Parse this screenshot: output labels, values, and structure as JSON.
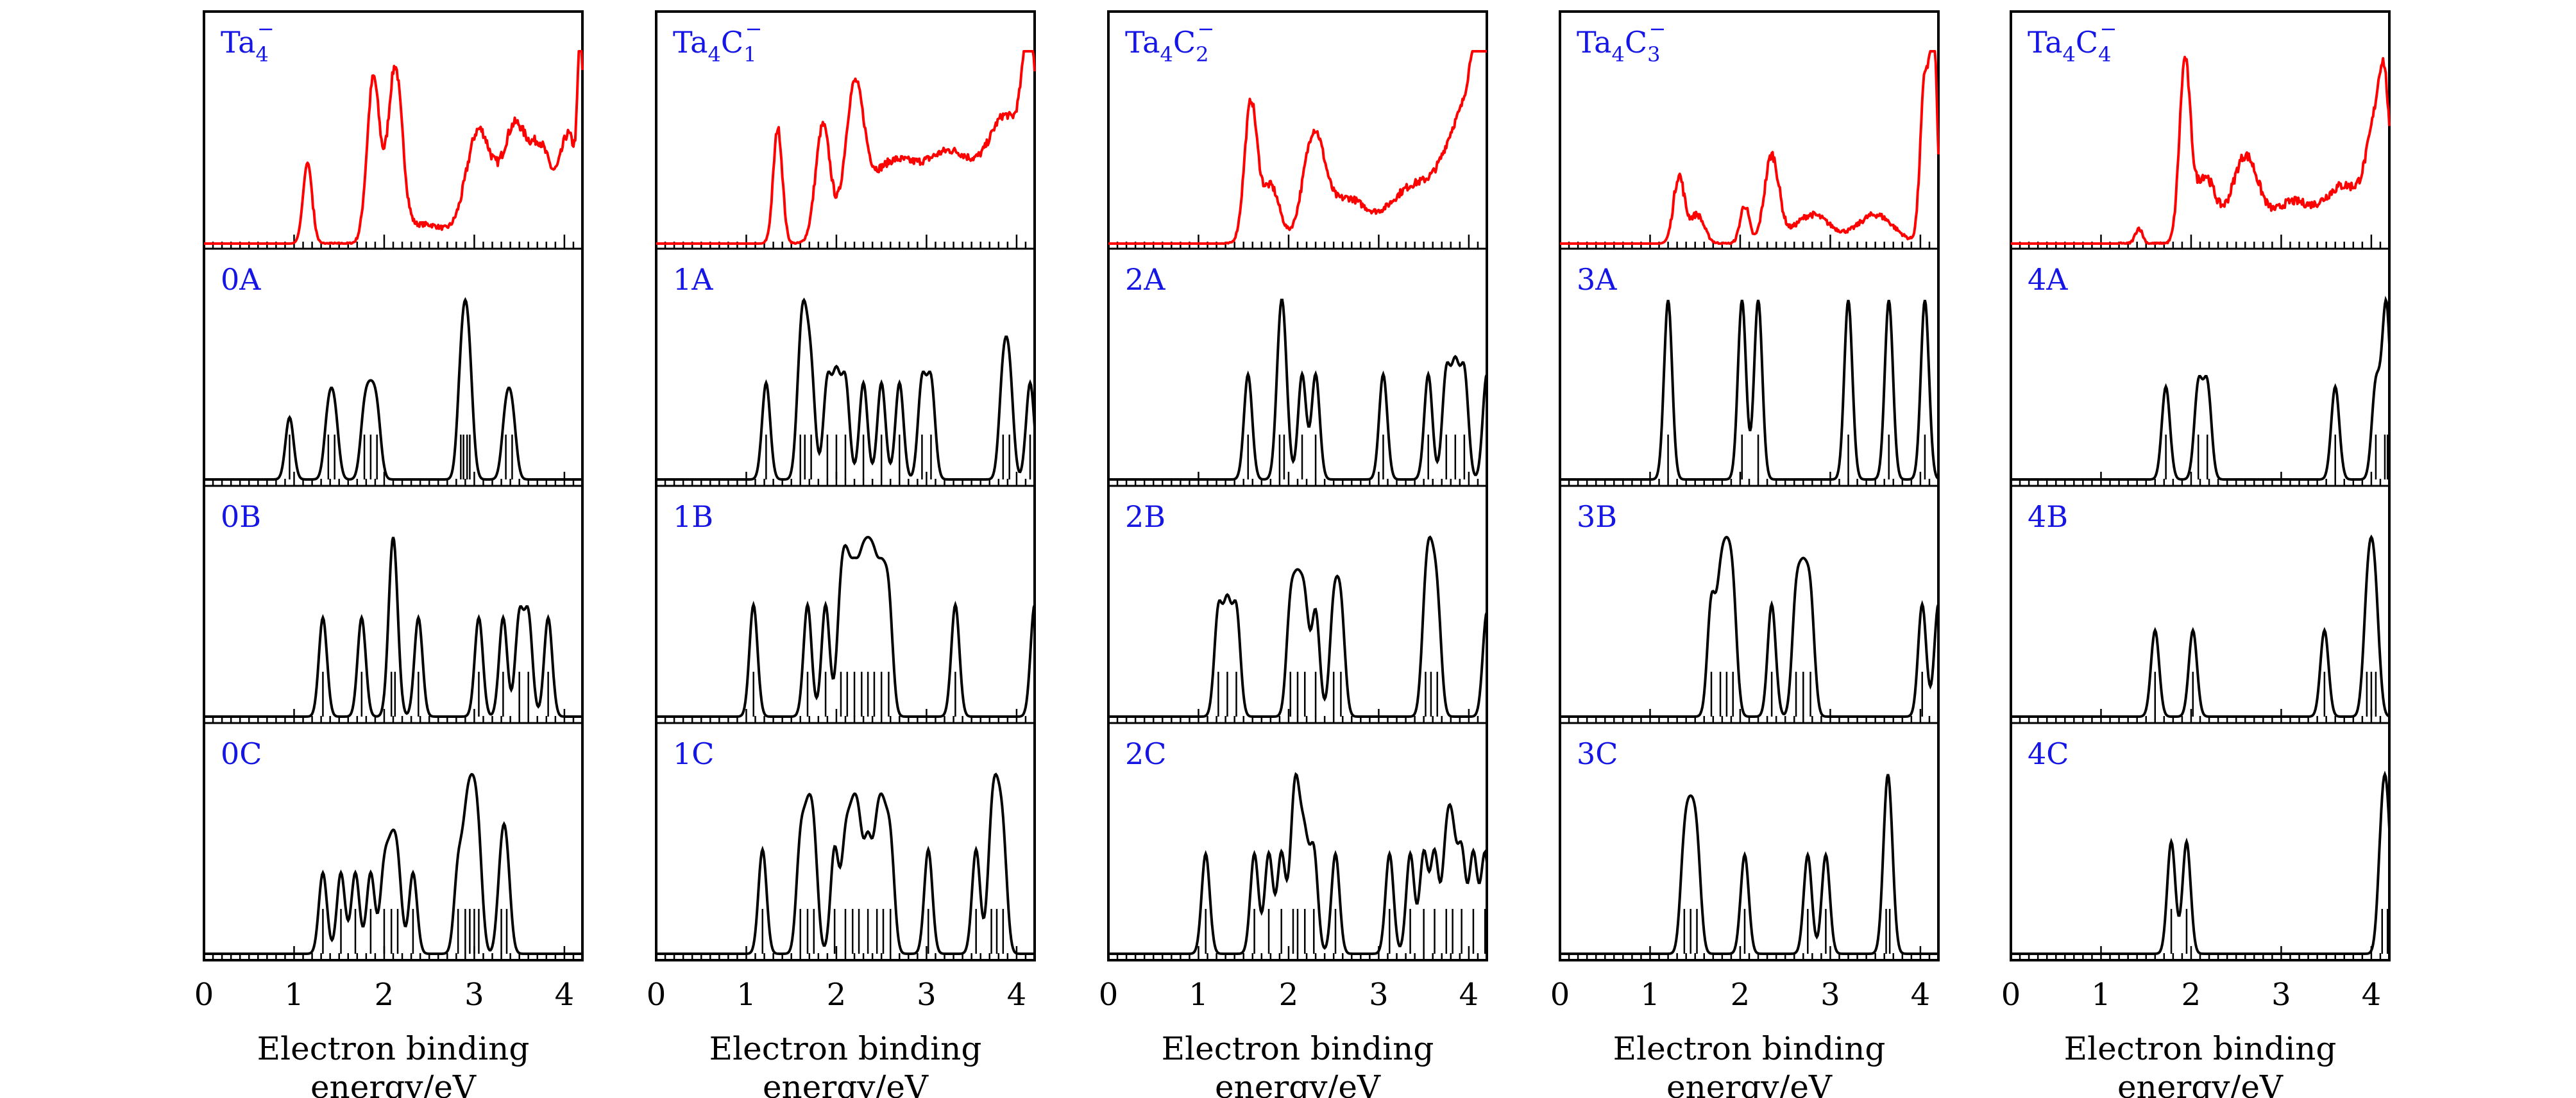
{
  "figure": {
    "xlabel_line1": "Electron binding",
    "xlabel_line2": "energy/eV",
    "colors": {
      "experiment": "#ff0000",
      "simulation": "#000000",
      "label": "#1515e6",
      "frame": "#000000"
    }
  },
  "chart_data": [
    {
      "type": "line",
      "cluster": "Ta4-",
      "xlim": [
        0,
        4.2
      ],
      "xticks": [
        0,
        1,
        2,
        3,
        4
      ],
      "experiment": {
        "label_base": "Ta",
        "label_sub": "4",
        "label_sup": "−",
        "label_text": "Ta4−",
        "peaks": [
          [
            1.15,
            0.42,
            0.05
          ],
          [
            1.88,
            0.85,
            0.07
          ],
          [
            2.12,
            0.88,
            0.08
          ],
          [
            2.45,
            0.1,
            0.25
          ],
          [
            3.05,
            0.58,
            0.14
          ],
          [
            3.45,
            0.6,
            0.14
          ],
          [
            3.75,
            0.45,
            0.12
          ],
          [
            4.05,
            0.55,
            0.1
          ],
          [
            4.18,
            0.9,
            0.03
          ]
        ],
        "noise": 0.05
      },
      "isomers": [
        {
          "label": "0A",
          "lines": [
            0.95,
            1.38,
            1.45,
            1.78,
            1.85,
            1.92,
            2.85,
            2.88,
            2.92,
            2.95,
            3.35,
            3.42
          ]
        },
        {
          "label": "0B",
          "lines": [
            1.32,
            1.75,
            2.08,
            2.12,
            2.38,
            3.05,
            3.32,
            3.5,
            3.6,
            3.82
          ]
        },
        {
          "label": "0C",
          "lines": [
            1.32,
            1.52,
            1.68,
            1.85,
            2.0,
            2.08,
            2.15,
            2.32,
            2.82,
            2.9,
            2.95,
            3.0,
            3.05,
            3.3,
            3.36
          ]
        }
      ]
    },
    {
      "type": "line",
      "cluster": "Ta4C1-",
      "xlim": [
        0,
        4.2
      ],
      "xticks": [
        0,
        1,
        2,
        3,
        4
      ],
      "experiment": {
        "label_base": "Ta",
        "label_sub": "4",
        "label_mid": "C",
        "label_sub2": "1",
        "label_sup": "−",
        "label_text": "Ta4C1−",
        "peaks": [
          [
            1.35,
            0.6,
            0.05
          ],
          [
            1.85,
            0.6,
            0.08
          ],
          [
            2.2,
            0.68,
            0.1
          ],
          [
            2.6,
            0.4,
            0.3
          ],
          [
            3.3,
            0.45,
            0.3
          ],
          [
            3.9,
            0.6,
            0.2
          ],
          [
            4.15,
            0.85,
            0.08
          ]
        ],
        "noise": 0.04
      },
      "isomers": [
        {
          "label": "1A",
          "lines": [
            1.22,
            1.6,
            1.65,
            1.72,
            1.9,
            2.0,
            2.1,
            2.3,
            2.5,
            2.7,
            2.95,
            3.05,
            3.85,
            3.92,
            4.15
          ]
        },
        {
          "label": "1B",
          "lines": [
            1.08,
            1.68,
            1.88,
            2.05,
            2.12,
            2.2,
            2.28,
            2.35,
            2.42,
            2.5,
            2.58,
            3.32,
            4.2
          ]
        },
        {
          "label": "1C",
          "lines": [
            1.18,
            1.6,
            1.68,
            1.75,
            1.98,
            2.1,
            2.18,
            2.25,
            2.35,
            2.45,
            2.52,
            2.6,
            3.02,
            3.55,
            3.72,
            3.78,
            3.85
          ]
        }
      ]
    },
    {
      "type": "line",
      "cluster": "Ta4C2-",
      "xlim": [
        0,
        4.2
      ],
      "xticks": [
        0,
        1,
        2,
        3,
        4
      ],
      "experiment": {
        "label_base": "Ta",
        "label_sub": "4",
        "label_mid": "C",
        "label_sub2": "2",
        "label_sup": "−",
        "label_text": "Ta4C2−",
        "peaks": [
          [
            1.58,
            0.72,
            0.07
          ],
          [
            1.8,
            0.3,
            0.1
          ],
          [
            2.28,
            0.55,
            0.12
          ],
          [
            2.65,
            0.22,
            0.2
          ],
          [
            3.4,
            0.3,
            0.3
          ],
          [
            3.95,
            0.6,
            0.2
          ],
          [
            4.15,
            0.85,
            0.1
          ]
        ],
        "noise": 0.04
      },
      "isomers": [
        {
          "label": "2A",
          "lines": [
            1.55,
            1.9,
            1.95,
            2.15,
            2.3,
            3.05,
            3.55,
            3.75,
            3.85,
            3.95,
            4.2
          ]
        },
        {
          "label": "2B",
          "lines": [
            1.22,
            1.32,
            1.42,
            2.02,
            2.1,
            2.18,
            2.3,
            2.5,
            2.58,
            3.52,
            3.58,
            3.65,
            4.2
          ]
        },
        {
          "label": "2C",
          "lines": [
            1.08,
            1.62,
            1.78,
            1.92,
            2.05,
            2.1,
            2.18,
            2.28,
            2.52,
            3.12,
            3.35,
            3.5,
            3.62,
            3.75,
            3.82,
            3.92,
            4.05,
            4.18
          ]
        }
      ]
    },
    {
      "type": "line",
      "cluster": "Ta4C3-",
      "xlim": [
        0,
        4.2
      ],
      "xticks": [
        0,
        1,
        2,
        3,
        4
      ],
      "experiment": {
        "label_base": "Ta",
        "label_sub": "4",
        "label_mid": "C",
        "label_sub2": "3",
        "label_sup": "−",
        "label_text": "Ta4C3−",
        "peaks": [
          [
            1.32,
            0.35,
            0.06
          ],
          [
            1.52,
            0.15,
            0.08
          ],
          [
            2.05,
            0.2,
            0.05
          ],
          [
            2.35,
            0.45,
            0.08
          ],
          [
            2.8,
            0.15,
            0.2
          ],
          [
            3.5,
            0.15,
            0.2
          ],
          [
            4.05,
            0.85,
            0.05
          ],
          [
            4.15,
            1.0,
            0.04
          ]
        ],
        "noise": 0.05
      },
      "isomers": [
        {
          "label": "3A",
          "lines": [
            1.2,
            2.02,
            2.2,
            3.2,
            3.65,
            4.05
          ]
        },
        {
          "label": "3B",
          "lines": [
            1.68,
            1.78,
            1.85,
            1.92,
            2.35,
            2.62,
            2.7,
            2.78,
            4.02,
            4.2
          ]
        },
        {
          "label": "3C",
          "lines": [
            1.38,
            1.45,
            1.52,
            2.05,
            2.75,
            2.95,
            3.62,
            3.66
          ]
        }
      ]
    },
    {
      "type": "line",
      "cluster": "Ta4C4-",
      "xlim": [
        0,
        4.2
      ],
      "xticks": [
        0,
        1,
        2,
        3,
        4
      ],
      "experiment": {
        "label_base": "Ta",
        "label_sub": "4",
        "label_mid": "C",
        "label_sub2": "4",
        "label_sup": "−",
        "label_text": "Ta4C4−",
        "peaks": [
          [
            1.42,
            0.08,
            0.04
          ],
          [
            1.93,
            0.9,
            0.06
          ],
          [
            2.15,
            0.35,
            0.12
          ],
          [
            2.6,
            0.45,
            0.15
          ],
          [
            3.1,
            0.2,
            0.2
          ],
          [
            3.7,
            0.3,
            0.25
          ],
          [
            4.05,
            0.5,
            0.1
          ],
          [
            4.15,
            0.55,
            0.06
          ]
        ],
        "noise": 0.05
      },
      "isomers": [
        {
          "label": "4A",
          "lines": [
            1.72,
            2.08,
            2.18,
            3.6,
            4.05,
            4.15,
            4.18
          ]
        },
        {
          "label": "4B",
          "lines": [
            1.6,
            2.02,
            3.48,
            3.95,
            4.0,
            4.05
          ]
        },
        {
          "label": "4C",
          "lines": [
            1.78,
            1.95,
            4.12,
            4.18
          ]
        }
      ]
    }
  ]
}
